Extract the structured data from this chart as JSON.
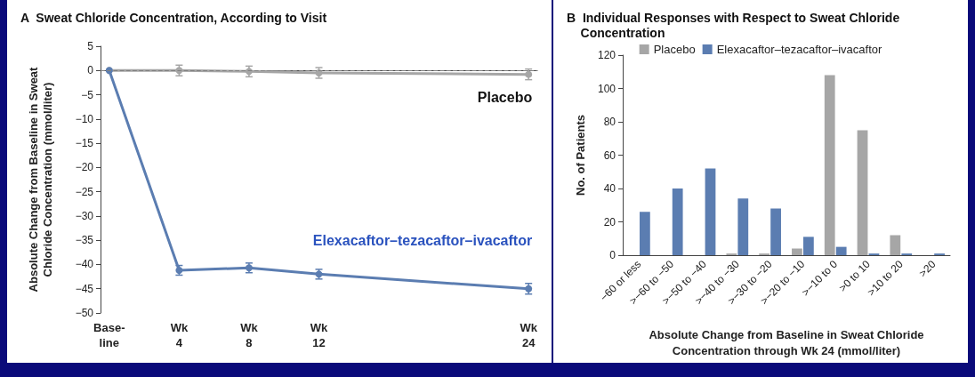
{
  "chart_data": [
    {
      "type": "line",
      "title": "A  Sweat Chloride Concentration, According to Visit",
      "ylabel": "Absolute Change from Baseline in Sweat\nChloride Concentration (mmol/liter)",
      "categories": [
        "Base-\nline",
        null,
        null,
        null,
        "Wk\n4",
        null,
        null,
        null,
        "Wk\n8",
        null,
        null,
        null,
        "Wk\n12",
        null,
        null,
        null,
        null,
        null,
        null,
        null,
        null,
        null,
        null,
        null,
        "Wk\n24"
      ],
      "ylim": [
        -50,
        5
      ],
      "yticks": [
        5,
        0,
        -5,
        -10,
        -15,
        -20,
        -25,
        -30,
        -35,
        -40,
        -45,
        -50
      ],
      "series": [
        {
          "name": "Placebo",
          "color": "#a6a6a6",
          "values": [
            0,
            null,
            null,
            null,
            0,
            null,
            null,
            null,
            -0.2,
            null,
            null,
            null,
            -0.5,
            null,
            null,
            null,
            null,
            null,
            null,
            null,
            null,
            null,
            null,
            null,
            -0.8
          ],
          "errors": [
            null,
            null,
            null,
            null,
            1.1,
            null,
            null,
            null,
            1.1,
            null,
            null,
            null,
            1.1,
            null,
            null,
            null,
            null,
            null,
            null,
            null,
            null,
            null,
            null,
            null,
            1.1
          ]
        },
        {
          "name": "Elexacaftor–tezacaftor–ivacaftor",
          "color": "#5b7db1",
          "values": [
            0,
            null,
            null,
            null,
            -41.2,
            null,
            null,
            null,
            -40.7,
            null,
            null,
            null,
            -42,
            null,
            null,
            null,
            null,
            null,
            null,
            null,
            null,
            null,
            null,
            null,
            -45
          ],
          "errors": [
            null,
            null,
            null,
            null,
            1,
            null,
            null,
            null,
            1,
            null,
            null,
            null,
            1,
            null,
            null,
            null,
            null,
            null,
            null,
            null,
            null,
            null,
            null,
            null,
            1.1
          ]
        }
      ],
      "ref_lines": [
        {
          "axis": "y",
          "value": 0,
          "line_style": "dashed",
          "color": "#808080"
        }
      ],
      "marker": "circle",
      "grid": false,
      "legend": false
    },
    {
      "type": "bar",
      "title": "B  Individual Responses with Respect to Sweat Chloride\n    Concentration",
      "xlabel": "Absolute Change from Baseline in Sweat Chloride\nConcentration through Wk 24 (mmol/liter)",
      "ylabel": "No. of Patients",
      "categories": [
        "−60 or less",
        ">−60 to −50",
        ">−50 to −40",
        ">−40 to −30",
        ">−30 to −20",
        ">−20 to −10",
        ">−10 to 0",
        ">0 to 10",
        ">10 to 20",
        ">20"
      ],
      "ylim": [
        0,
        120
      ],
      "yticks": [
        0,
        20,
        40,
        60,
        80,
        100,
        120
      ],
      "series": [
        {
          "name": "Placebo",
          "color": "#a6a6a6",
          "values": [
            0,
            0,
            0,
            1,
            1,
            4,
            108,
            75,
            12,
            0
          ]
        },
        {
          "name": "Elexacaftor–tezacaftor–ivacaftor",
          "color": "#5b7db1",
          "values": [
            26,
            40,
            52,
            34,
            28,
            11,
            5,
            1,
            1,
            1
          ]
        }
      ],
      "grid": false,
      "legend": "top"
    }
  ]
}
